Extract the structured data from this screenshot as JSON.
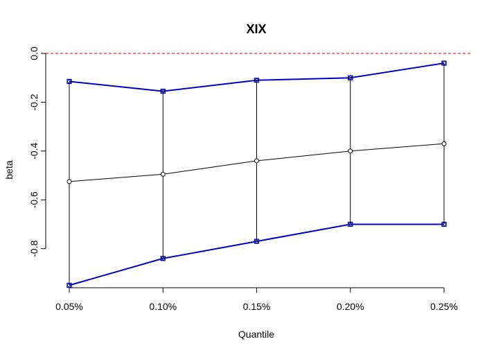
{
  "chart_data": {
    "type": "line",
    "title": "XIX",
    "xlabel": "Quantile",
    "ylabel": "beta",
    "categories": [
      "0.05%",
      "0.10%",
      "0.15%",
      "0.20%",
      "0.25%"
    ],
    "y_ticks": [
      "0.0",
      "-0.2",
      "-0.4",
      "-0.6",
      "-0.8"
    ],
    "y_tick_values": [
      0.0,
      -0.2,
      -0.4,
      -0.6,
      -0.8
    ],
    "ylim": [
      -0.96,
      0.0
    ],
    "series": [
      {
        "values": [
          -0.525,
          -0.495,
          -0.44,
          -0.4,
          -0.37
        ],
        "color": "#000000"
      },
      {
        "values": [
          -0.115,
          -0.155,
          -0.11,
          -0.1,
          -0.04
        ],
        "color": "#0000cc"
      },
      {
        "values": [
          -0.95,
          -0.84,
          -0.77,
          -0.7,
          -0.7
        ],
        "color": "#0000cc"
      }
    ],
    "reference_line": {
      "value": 0.0,
      "color": "#dd0000",
      "style": "dashed"
    },
    "grid": false
  }
}
